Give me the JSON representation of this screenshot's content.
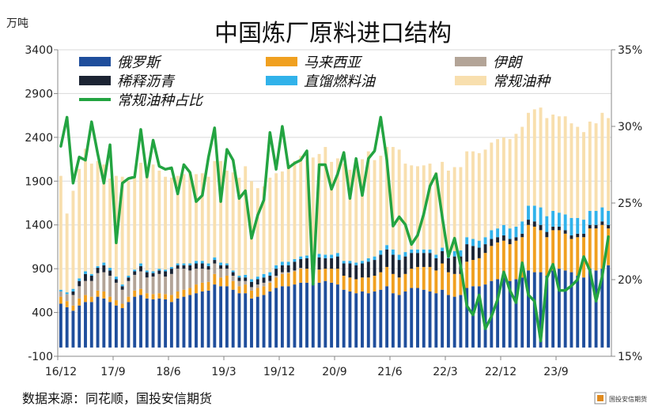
{
  "chart_data": {
    "type": "bar",
    "title": "中国炼厂原料进口结构",
    "left_unit": "万吨",
    "source_note": "数据来源：同花顺，国投安信期货",
    "logo_text": "国投安信期货",
    "left_axis": {
      "min": -100,
      "max": 3400,
      "ticks": [
        "3400",
        "2900",
        "2400",
        "1900",
        "1400",
        "900",
        "400",
        "-100"
      ]
    },
    "right_axis": {
      "min": 15,
      "max": 35,
      "ticks": [
        "35%",
        "30%",
        "25%",
        "20%",
        "15%"
      ]
    },
    "x_tick_labels": [
      "16/12",
      "17/9",
      "18/6",
      "19/3",
      "19/12",
      "20/9",
      "21/6",
      "22/3",
      "22/12",
      "23/9"
    ],
    "x_tick_index": [
      0,
      9,
      18,
      27,
      36,
      45,
      54,
      63,
      72,
      81
    ],
    "legend": {
      "russia": "俄罗斯",
      "malaysia": "马来西亚",
      "iran": "伊朗",
      "diluted": "稀释沥青",
      "straight": "直馏燃料油",
      "conventional": "常规油种",
      "share": "常规油种占比"
    },
    "colors": {
      "russia": "#1f4e9c",
      "malaysia": "#f0a020",
      "iran": "#b3a497",
      "diluted": "#1c2433",
      "straight": "#31b2ea",
      "conventional": "#f8dfae",
      "share": "#23a441"
    },
    "series": [
      {
        "name": "俄罗斯",
        "key": "russia",
        "values": [
          500,
          460,
          420,
          480,
          520,
          520,
          580,
          560,
          520,
          480,
          450,
          520,
          580,
          600,
          560,
          550,
          560,
          550,
          520,
          560,
          580,
          600,
          620,
          640,
          650,
          720,
          700,
          700,
          660,
          620,
          620,
          560,
          580,
          600,
          640,
          680,
          700,
          700,
          720,
          740,
          740,
          740,
          740,
          760,
          740,
          720,
          660,
          640,
          620,
          640,
          620,
          640,
          660,
          700,
          620,
          600,
          640,
          680,
          680,
          660,
          640,
          620,
          660,
          600,
          580,
          600,
          680,
          700,
          700,
          720,
          760,
          780,
          800,
          760,
          780,
          800,
          880,
          860,
          860,
          820,
          880,
          900,
          880,
          860,
          820,
          800,
          900,
          880,
          900,
          940
        ]
      },
      {
        "name": "马来西亚",
        "key": "malaysia",
        "values": [
          80,
          70,
          60,
          80,
          80,
          60,
          70,
          80,
          60,
          60,
          50,
          60,
          70,
          70,
          60,
          60,
          60,
          60,
          80,
          80,
          80,
          80,
          100,
          100,
          100,
          120,
          100,
          120,
          100,
          80,
          100,
          90,
          100,
          100,
          100,
          120,
          140,
          150,
          150,
          160,
          160,
          160,
          150,
          140,
          160,
          180,
          160,
          160,
          160,
          160,
          180,
          180,
          200,
          220,
          220,
          200,
          200,
          220,
          240,
          260,
          280,
          260,
          300,
          260,
          260,
          240,
          300,
          300,
          320,
          360,
          400,
          420,
          420,
          420,
          440,
          460,
          520,
          520,
          480,
          440,
          460,
          440,
          420,
          380,
          440,
          460,
          460,
          480,
          500,
          420
        ]
      },
      {
        "name": "伊朗",
        "key": "iran",
        "values": [
          60,
          80,
          120,
          140,
          160,
          180,
          200,
          220,
          240,
          200,
          160,
          180,
          180,
          200,
          180,
          200,
          220,
          200,
          240,
          260,
          240,
          200,
          180,
          160,
          140,
          120,
          100,
          80,
          60,
          60,
          40,
          40,
          40,
          40,
          20,
          20,
          20,
          10,
          10,
          10,
          0,
          0,
          0,
          0,
          0,
          0,
          0,
          0,
          0,
          0,
          0,
          0,
          0,
          0,
          0,
          0,
          0,
          0,
          0,
          0,
          0,
          0,
          0,
          0,
          0,
          0,
          0,
          0,
          0,
          0,
          0,
          0,
          0,
          0,
          0,
          0,
          0,
          0,
          0,
          0,
          0,
          0,
          0,
          0,
          0,
          0,
          0,
          0,
          0,
          0
        ]
      },
      {
        "name": "稀释沥青",
        "key": "diluted",
        "values": [
          0,
          0,
          40,
          60,
          80,
          60,
          60,
          80,
          60,
          40,
          40,
          40,
          40,
          60,
          60,
          40,
          40,
          60,
          60,
          40,
          40,
          60,
          60,
          60,
          40,
          40,
          40,
          40,
          40,
          40,
          40,
          60,
          60,
          60,
          60,
          80,
          80,
          80,
          100,
          100,
          120,
          120,
          140,
          120,
          120,
          140,
          140,
          160,
          160,
          160,
          180,
          180,
          200,
          200,
          220,
          200,
          200,
          180,
          160,
          160,
          160,
          140,
          140,
          160,
          200,
          200,
          200,
          160,
          120,
          100,
          80,
          60,
          60,
          60,
          40,
          40,
          60,
          60,
          60,
          60,
          40,
          40,
          40,
          40,
          40,
          40,
          40,
          40,
          40,
          40
        ]
      },
      {
        "name": "直馏燃料油",
        "key": "straight",
        "values": [
          20,
          20,
          30,
          30,
          30,
          20,
          20,
          30,
          30,
          30,
          20,
          20,
          20,
          30,
          20,
          20,
          20,
          20,
          20,
          20,
          20,
          20,
          30,
          30,
          30,
          30,
          30,
          20,
          20,
          20,
          30,
          30,
          30,
          40,
          40,
          40,
          40,
          40,
          30,
          30,
          30,
          30,
          40,
          40,
          40,
          40,
          30,
          30,
          30,
          30,
          40,
          40,
          50,
          50,
          60,
          60,
          50,
          40,
          40,
          40,
          40,
          40,
          40,
          60,
          60,
          70,
          80,
          80,
          80,
          80,
          100,
          100,
          120,
          120,
          120,
          140,
          160,
          180,
          200,
          180,
          180,
          160,
          180,
          200,
          180,
          160,
          160,
          160,
          160,
          160
        ]
      },
      {
        "name": "常规油种",
        "key": "conventional",
        "values": [
          1300,
          900,
          1120,
          1250,
          1400,
          1260,
          1200,
          1120,
          1020,
          1150,
          1230,
          1080,
          1050,
          1150,
          1100,
          1220,
          1120,
          1060,
          1020,
          1000,
          1020,
          1040,
          990,
          1000,
          990,
          1100,
          1160,
          1060,
          1120,
          1120,
          1240,
          1120,
          1010,
          1000,
          1080,
          1050,
          1030,
          1100,
          1120,
          1150,
          1090,
          1120,
          1140,
          1230,
          1060,
          1080,
          1110,
          1040,
          1080,
          1160,
          1220,
          1100,
          1080,
          1120,
          1170,
          1200,
          1010,
          960,
          950,
          960,
          980,
          940,
          980,
          940,
          960,
          950,
          980,
          1000,
          1000,
          1000,
          1000,
          1020,
          1000,
          1020,
          1060,
          1080,
          1060,
          1100,
          1140,
          1120,
          1100,
          1100,
          1120,
          1080,
          1040,
          1000,
          1020,
          1000,
          1080,
          1060
        ]
      }
    ],
    "share_pct": [
      28.7,
      30.6,
      26.3,
      28.0,
      27.8,
      30.3,
      28.2,
      26.3,
      28.8,
      22.4,
      26.3,
      26.6,
      26.7,
      29.8,
      26.7,
      29.1,
      27.4,
      27.2,
      27.3,
      25.6,
      27.5,
      27.0,
      25.1,
      25.5,
      28.0,
      29.9,
      25.1,
      28.5,
      27.8,
      25.3,
      25.8,
      22.7,
      24.2,
      25.2,
      29.6,
      27.2,
      30.0,
      27.3,
      27.6,
      27.8,
      28.4,
      19.7,
      27.5,
      27.5,
      25.9,
      26.9,
      28.3,
      25.3,
      27.9,
      25.5,
      27.9,
      28.4,
      30.6,
      27.8,
      23.5,
      24.1,
      23.6,
      22.3,
      22.9,
      24.3,
      26.1,
      26.9,
      24.1,
      21.5,
      22.7,
      20.9,
      18.3,
      17.7,
      19.0,
      16.8,
      17.6,
      18.7,
      20.5,
      19.3,
      18.5,
      21.1,
      19.0,
      18.6,
      16.0,
      20.1,
      21.0,
      19.3,
      19.3,
      19.6,
      20.0,
      21.5,
      20.6,
      18.6,
      20.2,
      22.8
    ]
  }
}
